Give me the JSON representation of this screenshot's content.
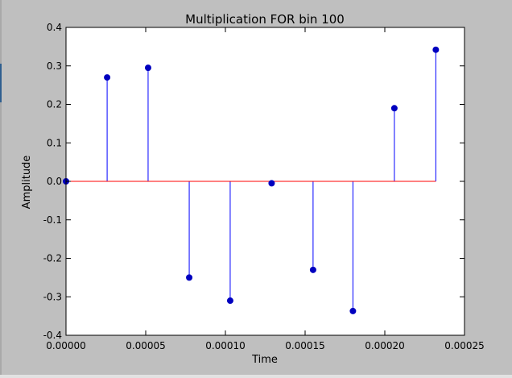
{
  "chart_data": {
    "type": "stem",
    "title": "Multiplication FOR bin 100",
    "xlabel": "Time",
    "ylabel": "Amplitude",
    "xlim": [
      0,
      0.00025
    ],
    "ylim": [
      -0.4,
      0.4
    ],
    "xticks": [
      "0.00000",
      "0.00005",
      "0.00010",
      "0.00015",
      "0.00020",
      "0.00025"
    ],
    "yticks": [
      "0.4",
      "0.3",
      "0.2",
      "0.1",
      "0.0",
      "-0.1",
      "-0.2",
      "-0.3",
      "-0.4"
    ],
    "x": [
      0.0,
      2.58e-05,
      5.15e-05,
      7.73e-05,
      0.000103,
      0.000129,
      0.000155,
      0.00018,
      0.000206,
      0.000232
    ],
    "y": [
      0.0,
      0.27,
      0.295,
      -0.25,
      -0.31,
      -0.005,
      -0.23,
      -0.337,
      0.19,
      0.342
    ],
    "baseline": 0.0,
    "grid": false,
    "colors": {
      "stem": "#0000ff",
      "marker": "#0000bf",
      "baseline": "#ff0000",
      "background": "#bfbfbf",
      "plot_background": "#ffffff"
    }
  }
}
